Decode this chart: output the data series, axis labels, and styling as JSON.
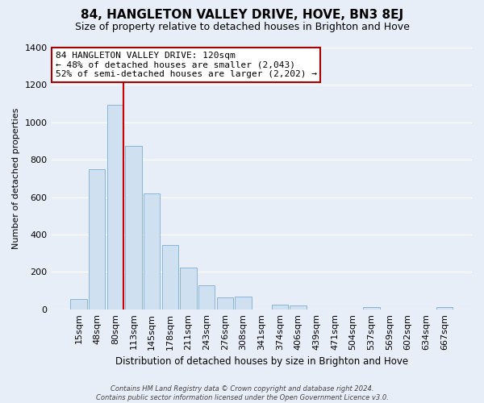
{
  "title": "84, HANGLETON VALLEY DRIVE, HOVE, BN3 8EJ",
  "subtitle": "Size of property relative to detached houses in Brighton and Hove",
  "xlabel": "Distribution of detached houses by size in Brighton and Hove",
  "ylabel": "Number of detached properties",
  "bar_labels": [
    "15sqm",
    "48sqm",
    "80sqm",
    "113sqm",
    "145sqm",
    "178sqm",
    "211sqm",
    "243sqm",
    "276sqm",
    "308sqm",
    "341sqm",
    "374sqm",
    "406sqm",
    "439sqm",
    "471sqm",
    "504sqm",
    "537sqm",
    "569sqm",
    "602sqm",
    "634sqm",
    "667sqm"
  ],
  "bar_values": [
    55,
    750,
    1095,
    875,
    620,
    345,
    225,
    130,
    65,
    70,
    0,
    25,
    20,
    0,
    0,
    0,
    10,
    0,
    0,
    0,
    10
  ],
  "bar_color": "#cfe0f0",
  "bar_edge_color": "#8ab4d8",
  "vline_color": "#cc0000",
  "annotation_line1": "84 HANGLETON VALLEY DRIVE: 120sqm",
  "annotation_line2": "← 48% of detached houses are smaller (2,043)",
  "annotation_line3": "52% of semi-detached houses are larger (2,202) →",
  "annotation_box_color": "#ffffff",
  "annotation_box_edge": "#aa0000",
  "ylim": [
    0,
    1400
  ],
  "yticks": [
    0,
    200,
    400,
    600,
    800,
    1000,
    1200,
    1400
  ],
  "footer_text": "Contains HM Land Registry data © Crown copyright and database right 2024.\nContains public sector information licensed under the Open Government Licence v3.0.",
  "bg_color": "#e8eef8",
  "plot_bg_color": "#e8eef8",
  "title_fontsize": 11,
  "subtitle_fontsize": 9
}
